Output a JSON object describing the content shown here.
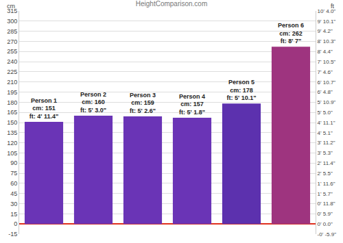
{
  "chart_data": {
    "type": "bar",
    "title": "HeightComparison.com",
    "y_label": "cm",
    "y2_label": "ft",
    "categories": [
      "Person 1",
      "Person 2",
      "Person 3",
      "Person 4",
      "Person 5",
      "Person 6"
    ],
    "values": [
      151,
      160,
      159,
      157,
      178,
      262
    ],
    "value_labels": [
      "cm: 151",
      "cm: 160",
      "cm: 159",
      "cm: 157",
      "cm: 178",
      "cm: 262"
    ],
    "ft_labels": [
      "ft: 4' 11.4\"",
      "ft: 5' 3.0\"",
      "ft: 5' 2.6\"",
      "ft: 5' 1.8\"",
      "ft: 5' 10.1\"",
      "ft: 8' 7\""
    ],
    "colors": [
      "#6a34b6",
      "#6a34b6",
      "#6a34b6",
      "#6a34b6",
      "#5c31ae",
      "#9e347f"
    ],
    "data_labels": true,
    "tick_labels": "y",
    "grid": true,
    "ylim": [
      -15,
      315
    ],
    "yticks": [
      -15,
      0,
      15,
      30,
      45,
      60,
      75,
      90,
      105,
      120,
      135,
      150,
      165,
      180,
      195,
      210,
      225,
      240,
      255,
      270,
      285,
      300,
      315
    ],
    "y2lim": [
      -0.4921,
      10.3346
    ],
    "y2ticks": [
      {
        "value": -0.4921,
        "label": "-0' -5.9\""
      },
      {
        "value": 0,
        "label": "0' 0.0\""
      },
      {
        "value": 0.4921,
        "label": "0' 5.9\""
      },
      {
        "value": 0.9843,
        "label": "0' 11.8\""
      },
      {
        "value": 1.4764,
        "label": "1' 5.7\""
      },
      {
        "value": 1.9685,
        "label": "1' 11.6\""
      },
      {
        "value": 2.4606,
        "label": "2' 5.5\""
      },
      {
        "value": 2.9528,
        "label": "2' 11.4\""
      },
      {
        "value": 3.4449,
        "label": "3' 5.3\""
      },
      {
        "value": 3.937,
        "label": "3' 11.2\""
      },
      {
        "value": 4.4291,
        "label": "4' 5.1\""
      },
      {
        "value": 4.9213,
        "label": "4' 11.1\""
      },
      {
        "value": 5.4134,
        "label": "5' 5.0\""
      },
      {
        "value": 5.9055,
        "label": "5' 10.9\""
      },
      {
        "value": 6.3976,
        "label": "6' 4.8\""
      },
      {
        "value": 6.8898,
        "label": "6' 10.7\""
      },
      {
        "value": 7.3819,
        "label": "7' 4.6\""
      },
      {
        "value": 7.874,
        "label": "7' 10.5\""
      },
      {
        "value": 8.3661,
        "label": "8' 4.4\""
      },
      {
        "value": 8.8583,
        "label": "8' 10.3\""
      },
      {
        "value": 9.3504,
        "label": "9' 4.2\""
      },
      {
        "value": 9.8425,
        "label": "9' 10.1\""
      },
      {
        "value": 10.3346,
        "label": "10' 4.0\""
      }
    ]
  }
}
